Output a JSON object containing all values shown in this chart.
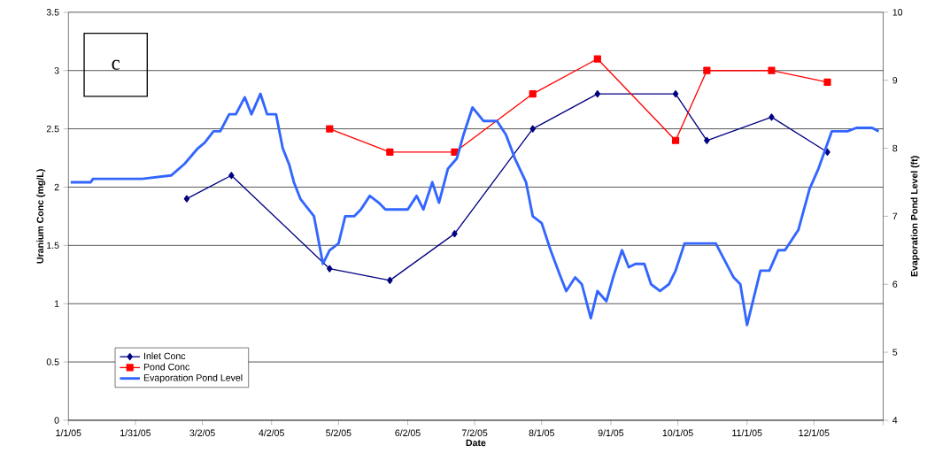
{
  "chart_data": {
    "type": "line",
    "xlabel": "Date",
    "ylabel": "Uranium Conc (mg/L)",
    "y2label": "Evaporation Pond Level (ft)",
    "annotations": [
      "c"
    ],
    "xlim": [
      "2005-01-01",
      "2006-01-01"
    ],
    "xticks": [
      {
        "value": "2005-01-01",
        "label": "1/1/05"
      },
      {
        "value": "2005-01-31",
        "label": "1/31/05"
      },
      {
        "value": "2005-03-02",
        "label": "3/2/05"
      },
      {
        "value": "2005-04-02",
        "label": "4/2/05"
      },
      {
        "value": "2005-05-02",
        "label": "5/2/05"
      },
      {
        "value": "2005-06-02",
        "label": "6/2/05"
      },
      {
        "value": "2005-07-02",
        "label": "7/2/05"
      },
      {
        "value": "2005-08-01",
        "label": "8/1/05"
      },
      {
        "value": "2005-09-01",
        "label": "9/1/05"
      },
      {
        "value": "2005-10-01",
        "label": "10/1/05"
      },
      {
        "value": "2005-11-01",
        "label": "11/1/05"
      },
      {
        "value": "2005-12-01",
        "label": "12/1/05"
      },
      {
        "value": "2006-01-01",
        "label": null
      }
    ],
    "ylim": [
      0,
      3.5
    ],
    "yticks": [
      0,
      0.5,
      1,
      1.5,
      2,
      2.5,
      3,
      3.5
    ],
    "y2lim": [
      4,
      10
    ],
    "y2ticks": [
      4,
      5,
      6,
      7,
      8,
      9,
      10
    ],
    "grid": "y",
    "legend": "bottom left",
    "line_style": "solid",
    "series": [
      {
        "name": "Inlet Conc",
        "color": "#000080",
        "marker": "diamond",
        "x": [
          "2005-02-23",
          "2005-03-15",
          "2005-04-28",
          "2005-05-25",
          "2005-06-23",
          "2005-07-28",
          "2005-08-26",
          "2005-09-30",
          "2005-10-14",
          "2005-11-12",
          "2005-12-07"
        ],
        "values": [
          1.9,
          2.1,
          1.3,
          1.2,
          1.6,
          2.5,
          2.8,
          2.8,
          2.4,
          2.6,
          2.3
        ]
      },
      {
        "name": "Pond Conc",
        "color": "#ff0000",
        "marker": "square",
        "x": [
          "2005-04-28",
          "2005-05-25",
          "2005-06-23",
          "2005-07-28",
          "2005-08-26",
          "2005-09-30",
          "2005-10-14",
          "2005-11-12",
          "2005-12-07"
        ],
        "values": [
          2.5,
          2.3,
          2.3,
          2.8,
          3.1,
          2.4,
          3.0,
          3.0,
          2.9
        ]
      },
      {
        "name": "Evaporation Pond Level",
        "color": "#3366ff",
        "marker": "none",
        "axis": "y2",
        "x": [
          "2005-01-02",
          "2005-01-11",
          "2005-01-12",
          "2005-02-03",
          "2005-02-16",
          "2005-02-22",
          "2005-02-28",
          "2005-03-03",
          "2005-03-07",
          "2005-03-10",
          "2005-03-14",
          "2005-03-17",
          "2005-03-21",
          "2005-03-24",
          "2005-03-28",
          "2005-03-31",
          "2005-04-04",
          "2005-04-07",
          "2005-04-10",
          "2005-04-12",
          "2005-04-15",
          "2005-04-21",
          "2005-04-25",
          "2005-04-28",
          "2005-05-02",
          "2005-05-05",
          "2005-05-09",
          "2005-05-12",
          "2005-05-16",
          "2005-05-20",
          "2005-05-23",
          "2005-06-02",
          "2005-06-06",
          "2005-06-09",
          "2005-06-13",
          "2005-06-16",
          "2005-06-20",
          "2005-06-24",
          "2005-06-27",
          "2005-07-01",
          "2005-07-06",
          "2005-07-12",
          "2005-07-16",
          "2005-07-20",
          "2005-07-25",
          "2005-07-28",
          "2005-08-01",
          "2005-08-05",
          "2005-08-09",
          "2005-08-12",
          "2005-08-16",
          "2005-08-19",
          "2005-08-23",
          "2005-08-26",
          "2005-08-30",
          "2005-09-02",
          "2005-09-06",
          "2005-09-09",
          "2005-09-12",
          "2005-09-16",
          "2005-09-19",
          "2005-09-23",
          "2005-09-27",
          "2005-09-30",
          "2005-10-04",
          "2005-10-18",
          "2005-10-22",
          "2005-10-26",
          "2005-10-29",
          "2005-11-01",
          "2005-11-04",
          "2005-11-07",
          "2005-11-11",
          "2005-11-15",
          "2005-11-18",
          "2005-11-24",
          "2005-11-29",
          "2005-12-03",
          "2005-12-09",
          "2005-12-16",
          "2005-12-20",
          "2005-12-27",
          "2005-12-30"
        ],
        "values": [
          7.5,
          7.5,
          7.55,
          7.55,
          7.6,
          7.77,
          8.0,
          8.08,
          8.25,
          8.25,
          8.5,
          8.5,
          8.75,
          8.5,
          8.8,
          8.5,
          8.5,
          8.0,
          7.75,
          7.5,
          7.25,
          7.0,
          6.3,
          6.5,
          6.6,
          7.0,
          7.0,
          7.1,
          7.3,
          7.2,
          7.1,
          7.1,
          7.3,
          7.1,
          7.5,
          7.2,
          7.7,
          7.85,
          8.2,
          8.6,
          8.4,
          8.4,
          8.2,
          7.85,
          7.5,
          7.0,
          6.9,
          6.5,
          6.15,
          5.9,
          6.1,
          6.0,
          5.5,
          5.9,
          5.75,
          6.1,
          6.5,
          6.25,
          6.3,
          6.3,
          6.0,
          5.9,
          6.0,
          6.2,
          6.6,
          6.6,
          6.35,
          6.1,
          6.0,
          5.4,
          5.8,
          6.2,
          6.2,
          6.5,
          6.5,
          6.8,
          7.4,
          7.7,
          8.25,
          8.25,
          8.3,
          8.3,
          8.25
        ]
      }
    ]
  }
}
